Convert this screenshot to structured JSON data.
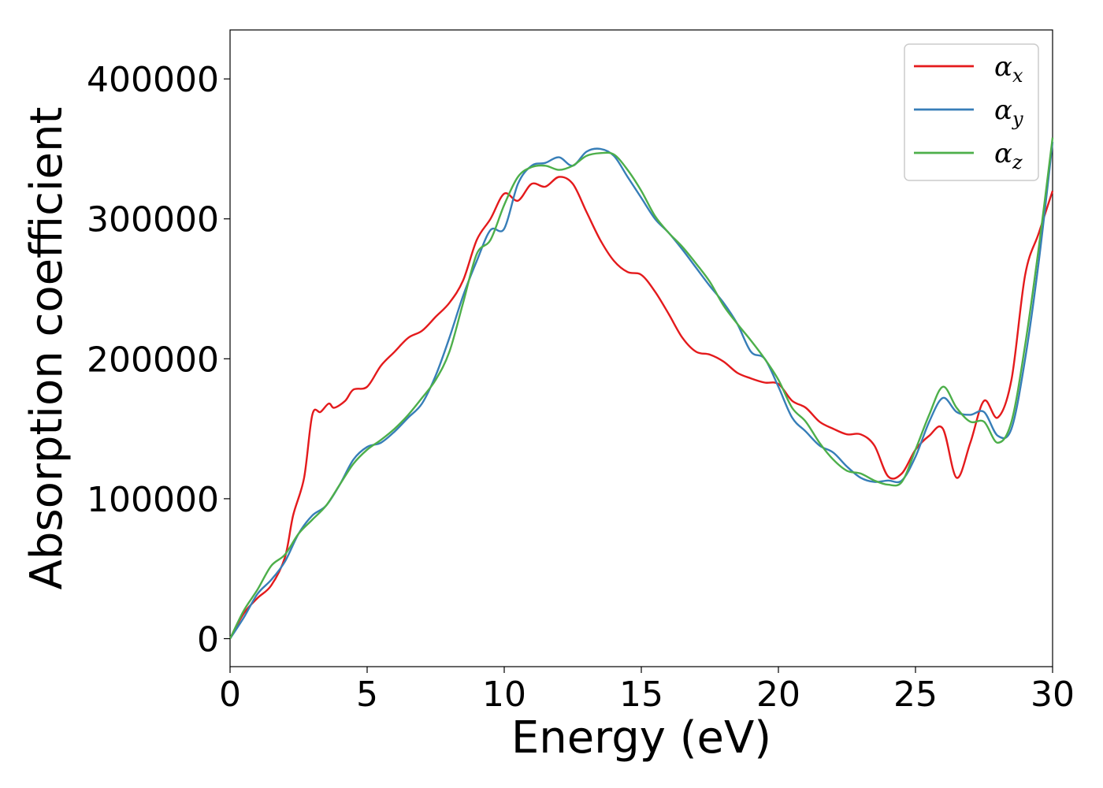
{
  "chart_data": {
    "type": "line",
    "title": "",
    "xlabel": "Energy (eV)",
    "ylabel": "Absorption coefficient",
    "xlim": [
      0,
      30
    ],
    "ylim": [
      -20000,
      435000
    ],
    "xticks": [
      0,
      5,
      10,
      15,
      20,
      25,
      30
    ],
    "yticks": [
      0,
      100000,
      200000,
      300000,
      400000
    ],
    "xtick_labels": [
      "0",
      "5",
      "10",
      "15",
      "20",
      "25",
      "30"
    ],
    "ytick_labels": [
      "0",
      "100000",
      "200000",
      "300000",
      "400000"
    ],
    "grid": false,
    "legend_position": "top-right",
    "series": [
      {
        "name": "α_x",
        "legend_base": "α",
        "legend_sub": "x",
        "color": "#e41a1c",
        "x": [
          0,
          0.5,
          1,
          1.5,
          2,
          2.3,
          2.7,
          3,
          3.3,
          3.6,
          3.8,
          4.2,
          4.5,
          5,
          5.5,
          6,
          6.5,
          7,
          7.5,
          8,
          8.5,
          9,
          9.5,
          10,
          10.5,
          11,
          11.5,
          12,
          12.5,
          13,
          13.5,
          14,
          14.5,
          15,
          15.5,
          16,
          16.5,
          17,
          17.5,
          18,
          18.5,
          19,
          19.5,
          20,
          20.5,
          21,
          21.5,
          22,
          22.5,
          23,
          23.5,
          24,
          24.5,
          25,
          25.5,
          26,
          26.5,
          27,
          27.5,
          28,
          28.5,
          29,
          29.5,
          30
        ],
        "y": [
          0,
          18000,
          29000,
          38000,
          58000,
          88000,
          115000,
          160000,
          162000,
          168000,
          165000,
          170000,
          178000,
          180000,
          195000,
          205000,
          215000,
          220000,
          230000,
          240000,
          256000,
          285000,
          300000,
          318000,
          313000,
          325000,
          323000,
          330000,
          325000,
          305000,
          285000,
          270000,
          262000,
          260000,
          248000,
          232000,
          215000,
          205000,
          203000,
          198000,
          190000,
          186000,
          183000,
          182000,
          170000,
          165000,
          155000,
          150000,
          146000,
          146000,
          138000,
          116000,
          118000,
          135000,
          145000,
          150000,
          115000,
          140000,
          170000,
          158000,
          185000,
          260000,
          290000,
          320000
        ]
      },
      {
        "name": "α_y",
        "legend_base": "α",
        "legend_sub": "y",
        "color": "#377eb8",
        "x": [
          0,
          0.5,
          1,
          1.5,
          2,
          2.5,
          3,
          3.5,
          4,
          4.5,
          5,
          5.5,
          6,
          6.5,
          7,
          7.5,
          8,
          8.5,
          9,
          9.5,
          10,
          10.5,
          11,
          11.5,
          12,
          12.5,
          13,
          13.5,
          14,
          14.5,
          15,
          15.5,
          16,
          16.5,
          17,
          17.5,
          18,
          18.5,
          19,
          19.5,
          20,
          20.5,
          21,
          21.5,
          22,
          22.5,
          23,
          23.5,
          24,
          24.5,
          25,
          25.5,
          26,
          26.5,
          27,
          27.5,
          28,
          28.5,
          29,
          29.5,
          30
        ],
        "y": [
          0,
          15000,
          32000,
          42000,
          55000,
          75000,
          88000,
          95000,
          110000,
          128000,
          137000,
          140000,
          148000,
          158000,
          168000,
          188000,
          215000,
          245000,
          270000,
          292000,
          293000,
          325000,
          338000,
          340000,
          344000,
          338000,
          348000,
          350000,
          345000,
          330000,
          315000,
          300000,
          290000,
          278000,
          265000,
          252000,
          240000,
          225000,
          205000,
          200000,
          180000,
          158000,
          148000,
          138000,
          133000,
          123000,
          115000,
          112000,
          113000,
          113000,
          130000,
          155000,
          172000,
          162000,
          160000,
          162000,
          145000,
          150000,
          200000,
          270000,
          355000
        ]
      },
      {
        "name": "α_z",
        "legend_base": "α",
        "legend_sub": "z",
        "color": "#4daf4a",
        "x": [
          0,
          0.5,
          1,
          1.5,
          2,
          2.5,
          3,
          3.5,
          4,
          4.5,
          5,
          5.5,
          6,
          6.5,
          7,
          7.5,
          8,
          8.5,
          9,
          9.5,
          10,
          10.5,
          11,
          11.5,
          12,
          12.5,
          13,
          13.5,
          14,
          14.5,
          15,
          15.5,
          16,
          16.5,
          17,
          17.5,
          18,
          18.5,
          19,
          19.5,
          20,
          20.5,
          21,
          21.5,
          22,
          22.5,
          23,
          23.5,
          24,
          24.5,
          25,
          25.5,
          26,
          26.5,
          27,
          27.5,
          28,
          28.5,
          29,
          29.5,
          30
        ],
        "y": [
          0,
          20000,
          35000,
          52000,
          60000,
          75000,
          85000,
          95000,
          110000,
          125000,
          135000,
          142000,
          150000,
          160000,
          172000,
          185000,
          205000,
          240000,
          275000,
          285000,
          310000,
          330000,
          337000,
          338000,
          335000,
          338000,
          345000,
          347000,
          346000,
          335000,
          320000,
          302000,
          290000,
          280000,
          268000,
          255000,
          238000,
          225000,
          213000,
          200000,
          185000,
          165000,
          155000,
          140000,
          128000,
          120000,
          118000,
          113000,
          110000,
          112000,
          135000,
          160000,
          180000,
          165000,
          155000,
          155000,
          140000,
          155000,
          210000,
          280000,
          358000
        ]
      }
    ]
  }
}
